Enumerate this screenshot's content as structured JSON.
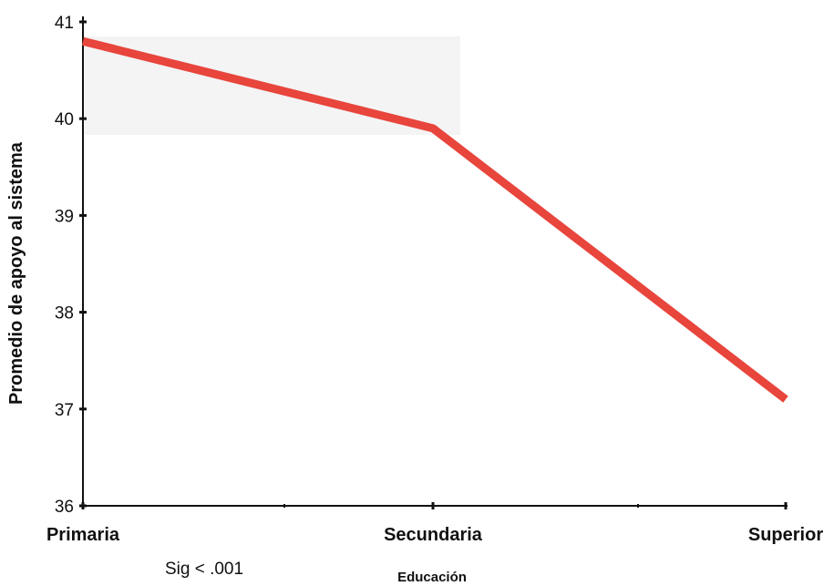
{
  "chart_data": {
    "type": "line",
    "categories": [
      "Primaria",
      "Secundaria",
      "Superior"
    ],
    "series": [
      {
        "values": [
          40.8,
          39.9,
          37.1
        ],
        "color": "#e8453c"
      }
    ],
    "xlabel": "Educación",
    "ylabel": "Promedio de apoyo al sistema",
    "yticks": [
      36,
      37,
      38,
      39,
      40,
      41
    ],
    "ylim": [
      36,
      41
    ],
    "grid": false,
    "annotation": "Sig < .001"
  }
}
